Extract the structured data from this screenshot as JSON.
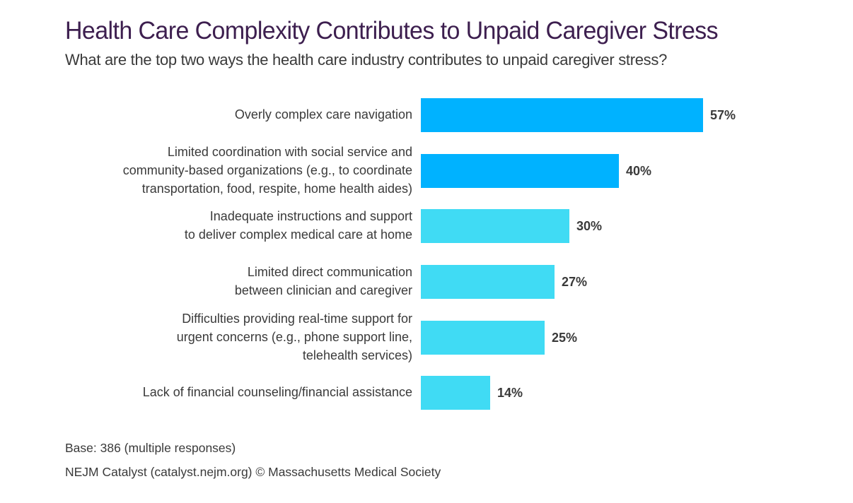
{
  "chart_data": {
    "type": "bar",
    "orientation": "horizontal",
    "title": "Health Care Complexity Contributes to Unpaid Caregiver Stress",
    "subtitle": "What are the top two ways the health care industry contributes to unpaid caregiver stress?",
    "xlabel": "",
    "ylabel": "",
    "xlim": [
      0,
      100
    ],
    "grid": false,
    "categories": [
      [
        "Overly complex care navigation"
      ],
      [
        "Limited coordination with social service and",
        "community-based organizations (e.g., to coordinate",
        "transportation, food, respite, home health aides)"
      ],
      [
        "Inadequate instructions and support",
        "to deliver complex medical care at home"
      ],
      [
        "Limited direct communication",
        "between clinician and caregiver"
      ],
      [
        "Difficulties providing real-time support for",
        "urgent concerns (e.g., phone support line,",
        "telehealth services)"
      ],
      [
        "Lack of financial counseling/financial assistance"
      ]
    ],
    "values": [
      57,
      40,
      30,
      27,
      25,
      14
    ],
    "value_labels": [
      "57%",
      "40%",
      "30%",
      "27%",
      "25%",
      "14%"
    ],
    "bar_colors": [
      "#00b2ff",
      "#00b2ff",
      "#40dbf4",
      "#40dbf4",
      "#40dbf4",
      "#40dbf4"
    ]
  },
  "footer": {
    "base": "Base: 386 (multiple responses)",
    "source": "NEJM Catalyst (catalyst.nejm.org) © Massachusetts Medical Society"
  },
  "colors": {
    "title": "#3d1f4f",
    "text": "#3a3a3a",
    "value_label": "#3a3a3a"
  }
}
